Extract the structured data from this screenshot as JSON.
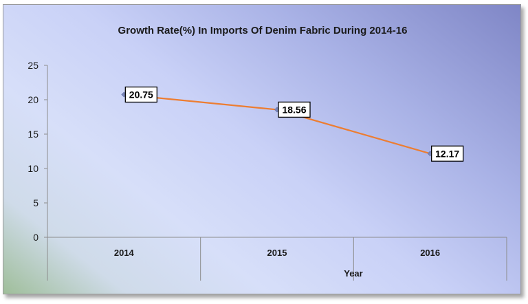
{
  "chart_data": {
    "type": "line",
    "title": "Growth Rate(%) In Imports Of Denim Fabric During 2014-16",
    "xlabel": "Year",
    "ylabel": "",
    "categories": [
      "2014",
      "2015",
      "2016"
    ],
    "series": [
      {
        "values": [
          20.75,
          18.56,
          12.17
        ],
        "color": "#ed7d31"
      }
    ],
    "data_labels": [
      "20.75",
      "18.56",
      "12.17"
    ],
    "ylim": [
      0,
      25
    ],
    "yticks": [
      "0",
      "5",
      "10",
      "15",
      "20",
      "25"
    ],
    "grid": false,
    "legend": "none",
    "background": "gradient-blue-green"
  }
}
